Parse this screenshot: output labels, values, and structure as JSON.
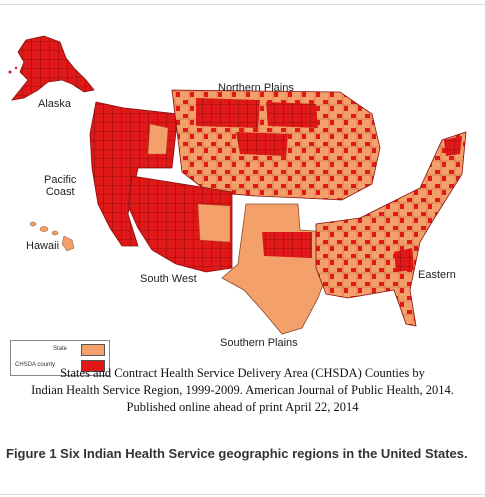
{
  "regions": {
    "alaska": "Alaska",
    "pacific_coast": "Pacific\nCoast",
    "hawaii": "Hawaii",
    "northern_plains": "Northern Plains",
    "south_west": "South West",
    "eastern": "Eastern",
    "southern_plains": "Southern Plains"
  },
  "legend": {
    "state_label": "State",
    "chsda_label": "CHSDA  county",
    "state_color": "#f4a06a",
    "chsda_color": "#e01818"
  },
  "colors": {
    "outline": "#8b1010",
    "region_gap": "#ffffff"
  },
  "caption": {
    "line1": "States and Contract Health Service Delivery Area (CHSDA) Counties by",
    "line2": "Indian Health Service Region, 1999-2009. American Journal of Public Health, 2014.",
    "line3": "Published online ahead of print April 22, 2014"
  },
  "figure_title": "Figure 1 Six Indian Health Service geographic regions in the United States."
}
